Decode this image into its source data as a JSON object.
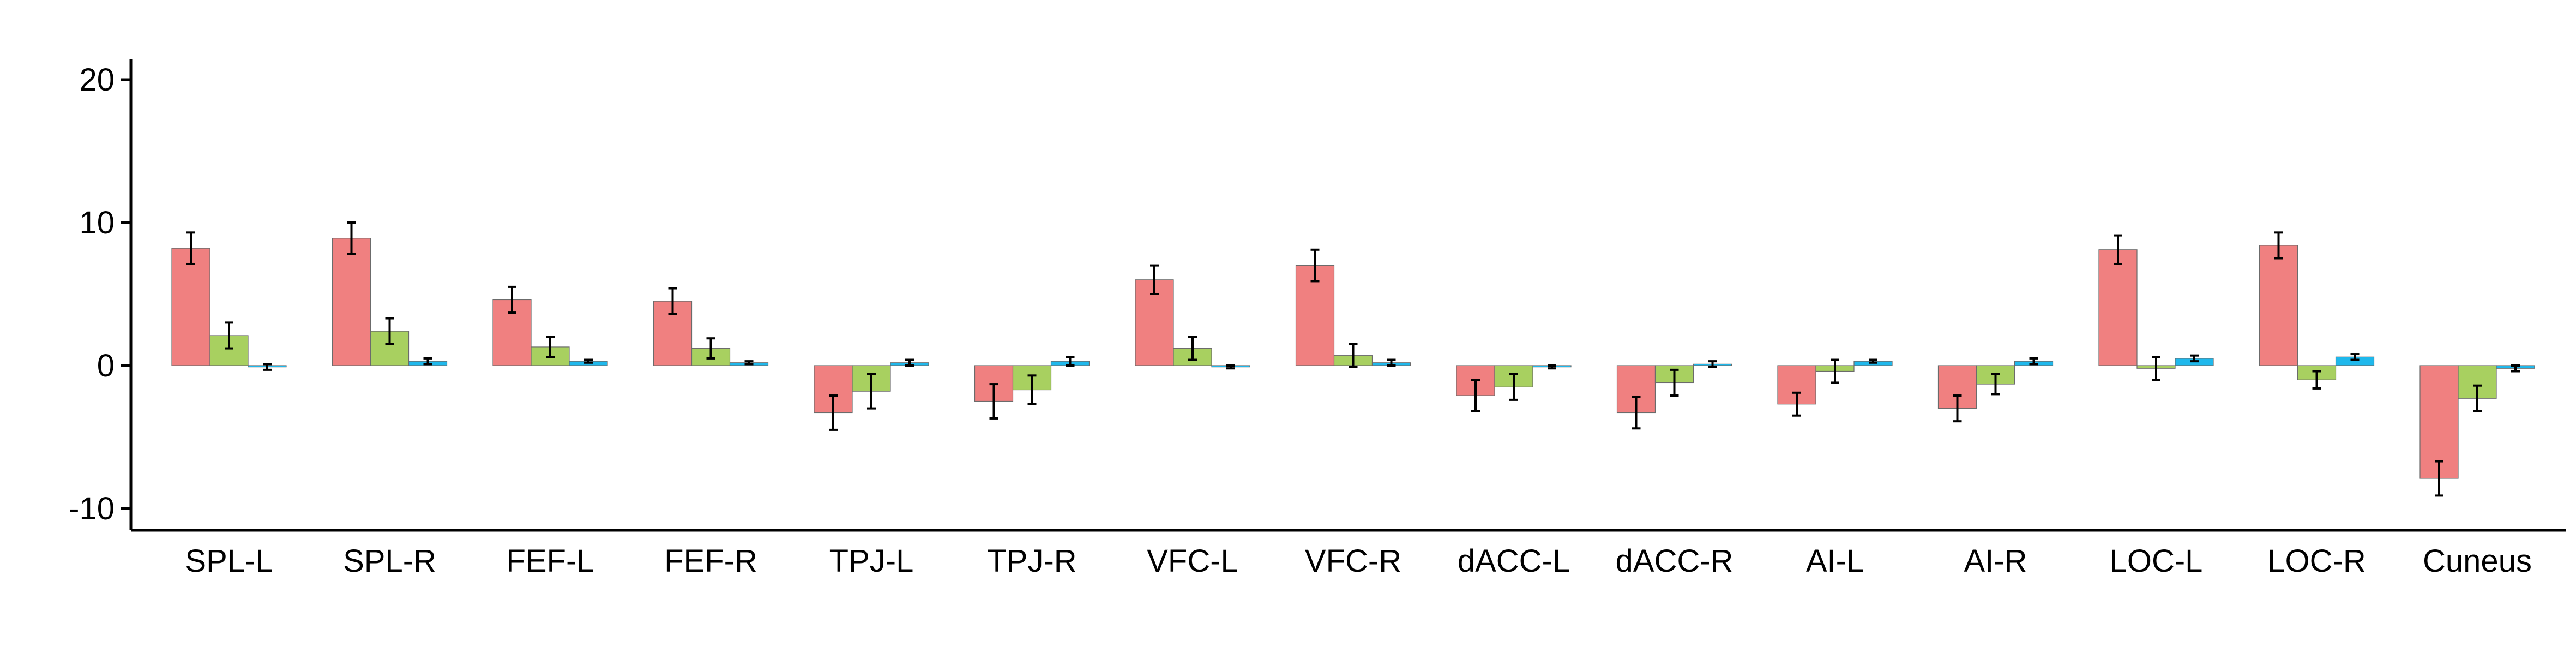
{
  "chart_data": {
    "type": "bar",
    "title": "",
    "xlabel": "",
    "ylabel": "",
    "ylim": [
      -12,
      22
    ],
    "yticks": [
      -10,
      0,
      10,
      20
    ],
    "ytick_labels": [
      "-10",
      "0",
      "10",
      "20"
    ],
    "grid": false,
    "legend": "none",
    "error_bars": true,
    "categories": [
      "SPL-L",
      "SPL-R",
      "FEF-L",
      "FEF-R",
      "TPJ-L",
      "TPJ-R",
      "VFC-L",
      "VFC-R",
      "dACC-L",
      "dACC-R",
      "AI-L",
      "AI-R",
      "LOC-L",
      "LOC-R",
      "Cuneus"
    ],
    "series": [
      {
        "color": "#f08080",
        "values": [
          8.2,
          8.9,
          4.6,
          4.5,
          -3.3,
          -2.5,
          6.0,
          7.0,
          -2.1,
          -3.3,
          -2.7,
          -3.0,
          8.1,
          8.4,
          -7.9
        ],
        "errors": [
          1.1,
          1.1,
          0.9,
          0.9,
          1.2,
          1.2,
          1.0,
          1.1,
          1.1,
          1.1,
          0.8,
          0.9,
          1.0,
          0.9,
          1.2
        ]
      },
      {
        "color": "#a8d060",
        "values": [
          2.1,
          2.4,
          1.3,
          1.2,
          -1.8,
          -1.7,
          1.2,
          0.7,
          -1.5,
          -1.2,
          -0.4,
          -1.3,
          -0.2,
          -1.0,
          -2.3
        ],
        "errors": [
          0.9,
          0.9,
          0.7,
          0.7,
          1.2,
          1.0,
          0.8,
          0.8,
          0.9,
          0.9,
          0.8,
          0.7,
          0.8,
          0.6,
          0.9
        ]
      },
      {
        "color": "#1fb8ec",
        "values": [
          -0.1,
          0.3,
          0.3,
          0.2,
          0.2,
          0.3,
          -0.1,
          0.2,
          -0.1,
          0.1,
          0.3,
          0.3,
          0.5,
          0.6,
          -0.2
        ],
        "errors": [
          0.2,
          0.2,
          0.1,
          0.1,
          0.2,
          0.3,
          0.1,
          0.2,
          0.1,
          0.2,
          0.1,
          0.2,
          0.2,
          0.2,
          0.2
        ]
      }
    ]
  }
}
